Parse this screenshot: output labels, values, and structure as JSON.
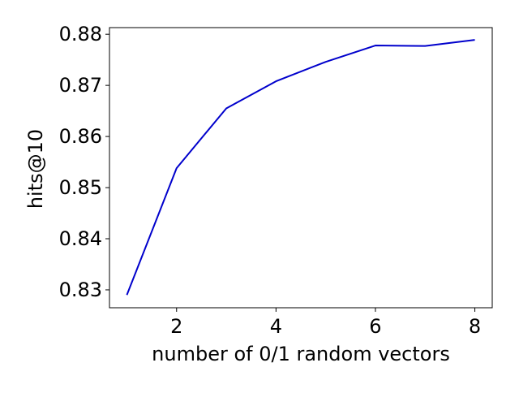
{
  "chart_data": {
    "type": "line",
    "title": "",
    "xlabel": "number of 0/1 random vectors",
    "ylabel": "hits@10",
    "x": [
      1,
      2,
      3,
      4,
      5,
      6,
      7,
      8
    ],
    "series": [
      {
        "values": [
          0.829,
          0.8538,
          0.8655,
          0.8708,
          0.8746,
          0.8778,
          0.8777,
          0.8789
        ],
        "color": "#0000cc"
      }
    ],
    "xlim": [
      0.65,
      8.35
    ],
    "ylim": [
      0.8265,
      0.8813
    ],
    "xticks": [
      2,
      4,
      6,
      8
    ],
    "xtick_labels": [
      "2",
      "4",
      "6",
      "8"
    ],
    "yticks": [
      0.83,
      0.84,
      0.85,
      0.86,
      0.87,
      0.88
    ],
    "ytick_labels": [
      "0.83",
      "0.84",
      "0.85",
      "0.86",
      "0.87",
      "0.88"
    ],
    "grid": false,
    "legend": "none"
  }
}
